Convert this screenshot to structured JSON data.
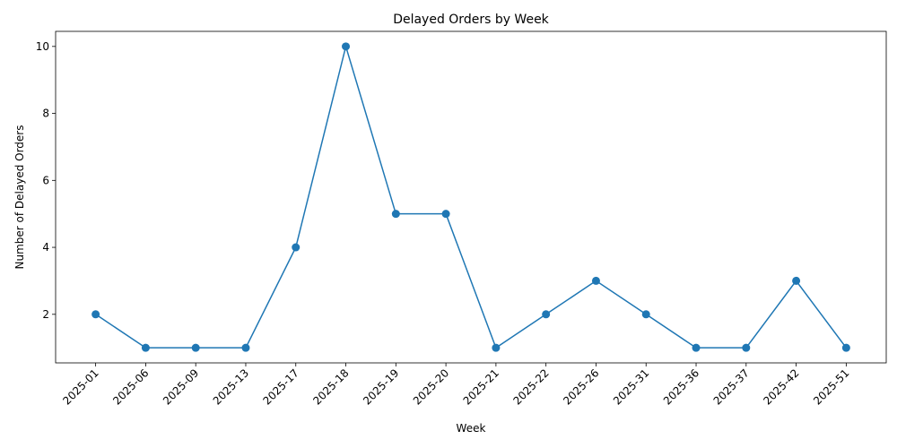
{
  "chart_data": {
    "type": "line",
    "title": "Delayed Orders by Week",
    "xlabel": "Week",
    "ylabel": "Number of Delayed Orders",
    "categories": [
      "2025-01",
      "2025-06",
      "2025-09",
      "2025-13",
      "2025-17",
      "2025-18",
      "2025-19",
      "2025-20",
      "2025-21",
      "2025-22",
      "2025-26",
      "2025-31",
      "2025-36",
      "2025-37",
      "2025-42",
      "2025-51"
    ],
    "series": [
      {
        "values": [
          2,
          1,
          1,
          1,
          4,
          10,
          5,
          5,
          1,
          2,
          3,
          2,
          1,
          1,
          3,
          1
        ],
        "color": "#1f77b4",
        "marker": "circle"
      }
    ],
    "ylim": [
      0.55,
      10.45
    ],
    "yticks": [
      2,
      4,
      6,
      8,
      10
    ],
    "grid": false,
    "legend": "none"
  }
}
